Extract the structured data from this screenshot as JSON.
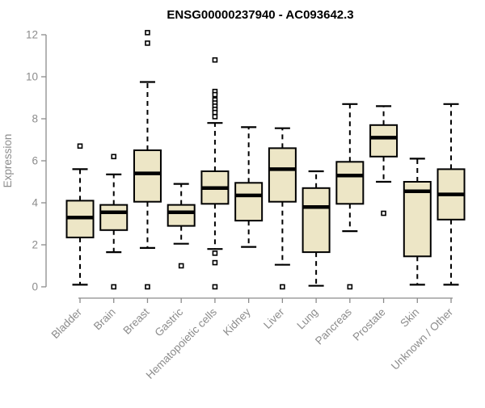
{
  "page": {
    "background": "#ffffff"
  },
  "chart_data": {
    "type": "boxplot",
    "title": "ENSG00000237940 - AC093642.3",
    "ylabel": "Expression",
    "xlabel": "",
    "ylim": [
      0,
      12
    ],
    "yticks": [
      0,
      2,
      4,
      6,
      8,
      10,
      12
    ],
    "grid": false,
    "legend": false,
    "categories": [
      "Bladder",
      "Brain",
      "Breast",
      "Gastric",
      "Hematopoietic cells",
      "Kidney",
      "Liver",
      "Lung",
      "Pancreas",
      "Prostate",
      "Skin",
      "Unknown / Other"
    ],
    "series": [
      {
        "category": "Bladder",
        "whisker_low": 0.1,
        "q1": 2.35,
        "median": 3.3,
        "q3": 4.1,
        "whisker_high": 5.6,
        "outliers": [
          6.7
        ]
      },
      {
        "category": "Brain",
        "whisker_low": 1.65,
        "q1": 2.7,
        "median": 3.55,
        "q3": 3.9,
        "whisker_high": 5.35,
        "outliers": [
          6.2,
          0
        ]
      },
      {
        "category": "Breast",
        "whisker_low": 1.85,
        "q1": 4.05,
        "median": 5.4,
        "q3": 6.5,
        "whisker_high": 9.75,
        "outliers": [
          12.1,
          11.6,
          0
        ]
      },
      {
        "category": "Gastric",
        "whisker_low": 2.05,
        "q1": 2.9,
        "median": 3.55,
        "q3": 3.9,
        "whisker_high": 4.9,
        "outliers": [
          1.0
        ]
      },
      {
        "category": "Hematopoietic cells",
        "whisker_low": 1.8,
        "q1": 3.95,
        "median": 4.7,
        "q3": 5.5,
        "whisker_high": 7.8,
        "outliers": [
          10.8,
          9.3,
          9.15,
          8.9,
          8.75,
          8.6,
          8.45,
          8.3,
          8.1,
          1.6,
          1.15,
          0
        ]
      },
      {
        "category": "Kidney",
        "whisker_low": 1.9,
        "q1": 3.15,
        "median": 4.35,
        "q3": 4.95,
        "whisker_high": 7.6,
        "outliers": []
      },
      {
        "category": "Liver",
        "whisker_low": 1.05,
        "q1": 4.05,
        "median": 5.6,
        "q3": 6.6,
        "whisker_high": 7.55,
        "outliers": [
          0
        ]
      },
      {
        "category": "Lung",
        "whisker_low": 0.05,
        "q1": 1.65,
        "median": 3.8,
        "q3": 4.7,
        "whisker_high": 5.5,
        "outliers": []
      },
      {
        "category": "Pancreas",
        "whisker_low": 2.65,
        "q1": 3.95,
        "median": 5.3,
        "q3": 5.95,
        "whisker_high": 8.7,
        "outliers": [
          0
        ]
      },
      {
        "category": "Prostate",
        "whisker_low": 5.0,
        "q1": 6.2,
        "median": 7.1,
        "q3": 7.7,
        "whisker_high": 8.6,
        "outliers": [
          3.5
        ]
      },
      {
        "category": "Skin",
        "whisker_low": 0.1,
        "q1": 1.45,
        "median": 4.55,
        "q3": 5.0,
        "whisker_high": 6.1,
        "outliers": []
      },
      {
        "category": "Unknown / Other",
        "whisker_low": 0.1,
        "q1": 3.2,
        "median": 4.4,
        "q3": 5.6,
        "whisker_high": 8.7,
        "outliers": []
      }
    ],
    "colors": {
      "box_fill": "#ede6c6",
      "box_stroke": "#000000",
      "median": "#000000",
      "whisker": "#000000",
      "outlier_stroke": "#000000",
      "outlier_fill": "#ffffff",
      "axis": "#8c8c8c",
      "axis_text": "#8c8c8c",
      "title_text": "#000000",
      "background": "#ffffff"
    }
  }
}
